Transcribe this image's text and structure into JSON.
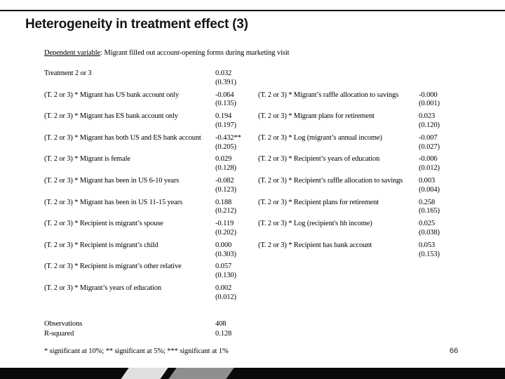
{
  "slide": {
    "title": "Heterogeneity in treatment effect (3)",
    "page_number": "66",
    "colors": {
      "top_rule": "#000000",
      "footer_band": "#0a0a0a",
      "footer_slash_light": "#e0e0e0",
      "footer_slash_dark": "#8f8f8f"
    }
  },
  "dependent_variable": {
    "label": "Dependent variable",
    "colon": ":",
    "description": " Migrant filled out account-opening forms during marketing visit"
  },
  "table": {
    "rows": [
      {
        "left": {
          "label": "Treatment 2 or 3",
          "coef": "0.032",
          "se": "(0.391)"
        },
        "right": {
          "label": "",
          "coef": "",
          "se": ""
        }
      },
      {
        "left": {
          "label": "(T. 2 or 3) * Migrant has US bank account only",
          "coef": "-0.064",
          "se": "(0.135)"
        },
        "right": {
          "label": "(T. 2 or 3) * Migrant’s raffle allocation to savings",
          "coef": "-0.000",
          "se": "(0.001)"
        }
      },
      {
        "left": {
          "label": "(T. 2 or 3) * Migrant has ES bank account only",
          "coef": "0.194",
          "se": "(0.197)"
        },
        "right": {
          "label": "(T. 2 or 3) * Migrant plans for retirement",
          "coef": "0.023",
          "se": "(0.120)"
        }
      },
      {
        "left": {
          "label": "(T. 2 or 3) * Migrant has both US and ES bank account",
          "coef": "-0.432**",
          "se": "(0.205)"
        },
        "right": {
          "label": "(T. 2 or 3) * Log (migrant’s annual income)",
          "coef": "-0.007",
          "se": "(0.027)"
        }
      },
      {
        "left": {
          "label": "(T. 2 or 3) * Migrant is female",
          "coef": "0.029",
          "se": "(0.128)"
        },
        "right": {
          "label": "(T. 2 or 3) * Recipient’s years of education",
          "coef": "-0.006",
          "se": "(0.012)"
        }
      },
      {
        "left": {
          "label": "(T. 2 or 3) * Migrant has been in US 6-10 years",
          "coef": "-0.082",
          "se": "(0.123)"
        },
        "right": {
          "label": "(T. 2 or 3) * Recipient’s raffle allocation to savings",
          "coef": "0.003",
          "se": "(0.004)"
        }
      },
      {
        "left": {
          "label": "(T. 2 or 3) * Migrant has been in US 11-15 years",
          "coef": "0.188",
          "se": "(0.212)"
        },
        "right": {
          "label": "(T. 2 or 3) * Recipient plans for retirement",
          "coef": "0.258",
          "se": "(0.165)"
        }
      },
      {
        "left": {
          "label": "(T. 2 or 3) * Recipient is migrant’s spouse",
          "coef": "-0.119",
          "se": "(0.202)"
        },
        "right": {
          "label": "(T. 2 or 3) * Log (recipient's hh income)",
          "coef": "0.025",
          "se": "(0.038)"
        }
      },
      {
        "left": {
          "label": "(T. 2 or 3) * Recipient is migrant’s child",
          "coef": "0.000",
          "se": "(0.303)"
        },
        "right": {
          "label": "(T. 2 or 3) * Recipient has bank account",
          "coef": "0.053",
          "se": "(0.153)"
        }
      },
      {
        "left": {
          "label": "(T. 2 or 3) * Recipient is migrant’s other relative",
          "coef": "0.057",
          "se": "(0.130)"
        },
        "right": {
          "label": "",
          "coef": "",
          "se": ""
        }
      },
      {
        "left": {
          "label": "(T. 2 or 3) * Migrant’s years of education",
          "coef": "0.002",
          "se": "(0.012)"
        },
        "right": {
          "label": "",
          "coef": "",
          "se": ""
        }
      }
    ],
    "stats": [
      {
        "label": "Observations",
        "value": "408"
      },
      {
        "label": "R-squared",
        "value": "0.128"
      }
    ],
    "note": "* significant at 10%; ** significant at 5%; *** significant at 1%"
  }
}
